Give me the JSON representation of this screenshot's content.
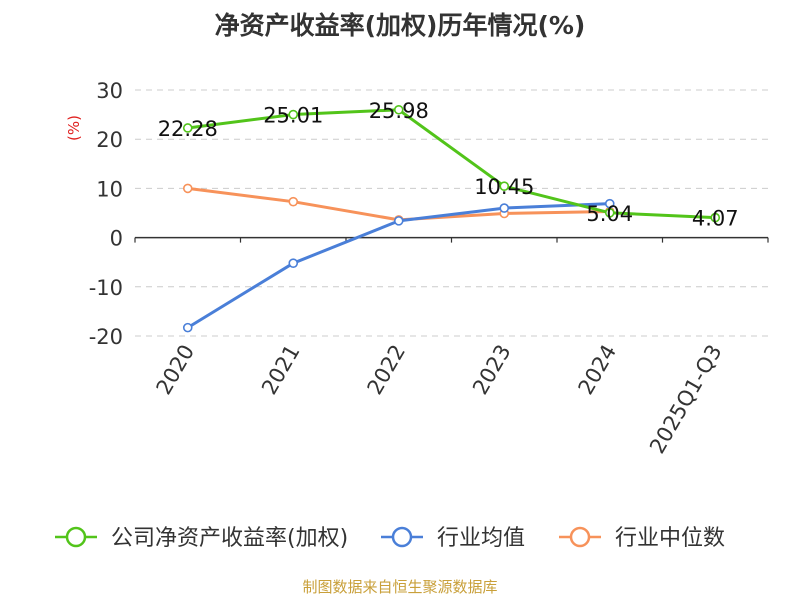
{
  "chart_data": {
    "type": "line",
    "title": "净资产收益率(加权)历年情况(%)",
    "ylabel": "(%)",
    "xlabel": "",
    "categories": [
      "2020",
      "2021",
      "2022",
      "2023",
      "2024",
      "2025Q1-Q3"
    ],
    "ylim": [
      -20,
      30
    ],
    "yticks": [
      30,
      20,
      10,
      0,
      -10,
      -20
    ],
    "ytick_labels": [
      "30",
      "20",
      "10",
      "0",
      "-10",
      "-20"
    ],
    "grid": true,
    "legend_position": "bottom",
    "series": [
      {
        "name": "公司净资产收益率(加权)",
        "color": "#52c41a",
        "values": [
          22.28,
          25.01,
          25.98,
          10.45,
          5.04,
          4.07
        ],
        "labels": [
          "22.28",
          "25.01",
          "25.98",
          "10.45",
          "5.04",
          "4.07"
        ]
      },
      {
        "name": "行业均值",
        "color": "#4a7fd8",
        "values": [
          -18.3,
          -5.2,
          3.4,
          6.0,
          6.9,
          null
        ]
      },
      {
        "name": "行业中位数",
        "color": "#f7925a",
        "values": [
          10.0,
          7.3,
          3.6,
          4.9,
          5.3,
          null
        ]
      }
    ]
  },
  "source": "制图数据来自恒生聚源数据库"
}
